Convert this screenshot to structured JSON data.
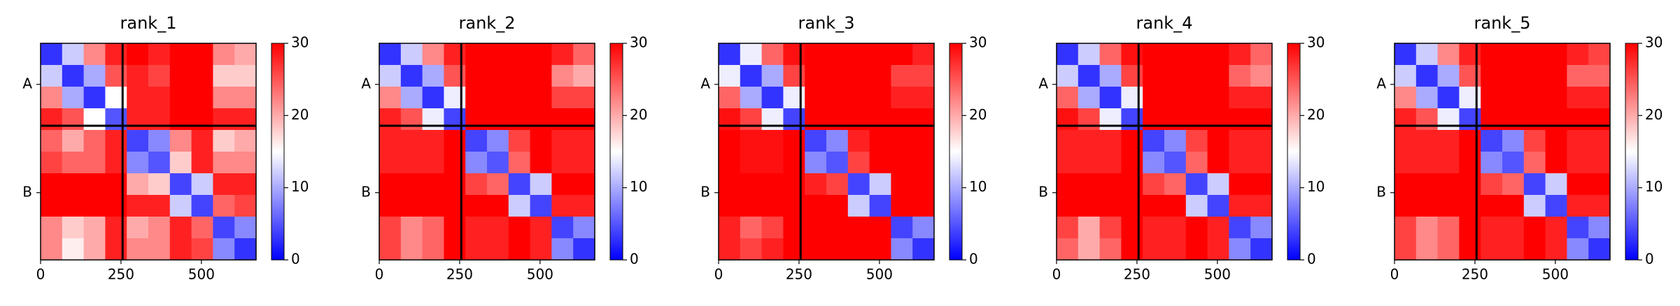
{
  "chart_data": [
    {
      "type": "heatmap",
      "title": "rank_1",
      "bins": [
        0,
        67,
        134,
        201,
        268,
        335,
        402,
        469,
        536,
        603,
        670
      ],
      "xlim": [
        0,
        670
      ],
      "ylim": [
        670,
        0
      ],
      "xticks": [
        0,
        250,
        500
      ],
      "yticks": [
        {
          "value": 127,
          "label": "A"
        },
        {
          "value": 462,
          "label": "B"
        }
      ],
      "chain_breaks": [
        255
      ],
      "clim": [
        0,
        30
      ],
      "cticks": [
        0,
        10,
        20,
        30
      ],
      "cmap": "bwr",
      "matrix": [
        [
          3,
          12,
          22,
          28,
          30,
          28,
          30,
          30,
          22,
          20
        ],
        [
          12,
          3,
          10,
          25,
          28,
          26,
          30,
          30,
          18,
          18
        ],
        [
          22,
          10,
          3,
          15,
          28,
          28,
          30,
          30,
          22,
          22
        ],
        [
          28,
          25,
          15,
          5,
          28,
          28,
          30,
          30,
          28,
          28
        ],
        [
          24,
          20,
          24,
          28,
          4,
          8,
          22,
          28,
          18,
          20
        ],
        [
          26,
          24,
          24,
          28,
          8,
          5,
          18,
          28,
          22,
          22
        ],
        [
          30,
          30,
          30,
          30,
          20,
          18,
          4,
          12,
          28,
          28
        ],
        [
          30,
          30,
          30,
          30,
          28,
          28,
          12,
          4,
          24,
          26
        ],
        [
          22,
          18,
          20,
          28,
          20,
          22,
          28,
          24,
          4,
          8
        ],
        [
          22,
          16,
          20,
          28,
          22,
          22,
          28,
          26,
          8,
          3
        ]
      ]
    },
    {
      "type": "heatmap",
      "title": "rank_2",
      "bins": [
        0,
        67,
        134,
        201,
        268,
        335,
        402,
        469,
        536,
        603,
        670
      ],
      "xlim": [
        0,
        670
      ],
      "ylim": [
        670,
        0
      ],
      "xticks": [
        0,
        250,
        500
      ],
      "yticks": [
        {
          "value": 127,
          "label": "A"
        },
        {
          "value": 462,
          "label": "B"
        }
      ],
      "chain_breaks": [
        255
      ],
      "clim": [
        0,
        30
      ],
      "cticks": [
        0,
        10,
        20,
        30
      ],
      "cmap": "bwr",
      "matrix": [
        [
          3,
          12,
          22,
          28,
          30,
          30,
          30,
          30,
          28,
          24
        ],
        [
          12,
          3,
          10,
          25,
          30,
          30,
          30,
          30,
          22,
          20
        ],
        [
          22,
          10,
          3,
          14,
          30,
          30,
          30,
          30,
          26,
          26
        ],
        [
          28,
          25,
          14,
          4,
          30,
          30,
          30,
          30,
          30,
          30
        ],
        [
          28,
          28,
          28,
          30,
          4,
          8,
          26,
          30,
          28,
          28
        ],
        [
          28,
          28,
          28,
          30,
          8,
          5,
          24,
          30,
          28,
          28
        ],
        [
          30,
          30,
          30,
          30,
          26,
          24,
          4,
          12,
          30,
          30
        ],
        [
          30,
          30,
          30,
          30,
          30,
          30,
          12,
          4,
          28,
          28
        ],
        [
          26,
          22,
          24,
          30,
          28,
          28,
          30,
          28,
          4,
          8
        ],
        [
          26,
          22,
          24,
          30,
          28,
          28,
          30,
          28,
          8,
          3
        ]
      ]
    },
    {
      "type": "heatmap",
      "title": "rank_3",
      "bins": [
        0,
        67,
        134,
        201,
        268,
        335,
        402,
        469,
        536,
        603,
        670
      ],
      "xlim": [
        0,
        670
      ],
      "ylim": [
        670,
        0
      ],
      "xticks": [
        0,
        250,
        500
      ],
      "yticks": [
        {
          "value": 127,
          "label": "A"
        },
        {
          "value": 462,
          "label": "B"
        }
      ],
      "chain_breaks": [
        255
      ],
      "clim": [
        0,
        30
      ],
      "cticks": [
        0,
        10,
        20,
        30
      ],
      "cmap": "bwr",
      "matrix": [
        [
          3,
          14,
          24,
          29,
          30,
          30,
          30,
          30,
          30,
          28
        ],
        [
          14,
          3,
          10,
          26,
          30,
          30,
          30,
          30,
          26,
          26
        ],
        [
          24,
          10,
          3,
          14,
          30,
          30,
          30,
          30,
          28,
          28
        ],
        [
          29,
          26,
          14,
          4,
          30,
          30,
          30,
          30,
          30,
          30
        ],
        [
          30,
          29,
          29,
          30,
          4,
          8,
          28,
          30,
          30,
          30
        ],
        [
          30,
          29,
          29,
          30,
          8,
          5,
          26,
          30,
          30,
          30
        ],
        [
          30,
          30,
          30,
          30,
          28,
          26,
          4,
          12,
          30,
          30
        ],
        [
          30,
          30,
          30,
          30,
          30,
          30,
          12,
          4,
          30,
          30
        ],
        [
          28,
          24,
          26,
          30,
          30,
          30,
          30,
          30,
          4,
          8
        ],
        [
          28,
          26,
          28,
          30,
          30,
          30,
          30,
          30,
          8,
          3
        ]
      ]
    },
    {
      "type": "heatmap",
      "title": "rank_4",
      "bins": [
        0,
        67,
        134,
        201,
        268,
        335,
        402,
        469,
        536,
        603,
        670
      ],
      "xlim": [
        0,
        670
      ],
      "ylim": [
        670,
        0
      ],
      "xticks": [
        0,
        250,
        500
      ],
      "yticks": [
        {
          "value": 127,
          "label": "A"
        },
        {
          "value": 462,
          "label": "B"
        }
      ],
      "chain_breaks": [
        255
      ],
      "clim": [
        0,
        30
      ],
      "cticks": [
        0,
        10,
        20,
        30
      ],
      "cmap": "bwr",
      "matrix": [
        [
          3,
          12,
          24,
          29,
          30,
          30,
          30,
          30,
          28,
          24
        ],
        [
          12,
          3,
          10,
          26,
          30,
          30,
          30,
          30,
          24,
          22
        ],
        [
          24,
          10,
          3,
          14,
          30,
          30,
          30,
          30,
          28,
          28
        ],
        [
          29,
          26,
          14,
          4,
          30,
          30,
          30,
          30,
          30,
          30
        ],
        [
          28,
          28,
          28,
          30,
          4,
          8,
          26,
          30,
          28,
          28
        ],
        [
          28,
          28,
          28,
          30,
          8,
          5,
          24,
          30,
          28,
          28
        ],
        [
          30,
          30,
          30,
          30,
          26,
          24,
          4,
          12,
          30,
          30
        ],
        [
          30,
          30,
          30,
          30,
          30,
          30,
          12,
          4,
          28,
          28
        ],
        [
          26,
          20,
          26,
          30,
          28,
          28,
          30,
          28,
          4,
          8
        ],
        [
          24,
          20,
          24,
          30,
          28,
          28,
          30,
          28,
          8,
          3
        ]
      ]
    },
    {
      "type": "heatmap",
      "title": "rank_5",
      "bins": [
        0,
        67,
        134,
        201,
        268,
        335,
        402,
        469,
        536,
        603,
        670
      ],
      "xlim": [
        0,
        670
      ],
      "ylim": [
        670,
        0
      ],
      "xticks": [
        0,
        250,
        500
      ],
      "yticks": [
        {
          "value": 127,
          "label": "A"
        },
        {
          "value": 462,
          "label": "B"
        }
      ],
      "chain_breaks": [
        255
      ],
      "clim": [
        0,
        30
      ],
      "cticks": [
        0,
        10,
        20,
        30
      ],
      "cmap": "bwr",
      "matrix": [
        [
          3,
          12,
          22,
          28,
          30,
          30,
          30,
          30,
          28,
          26
        ],
        [
          12,
          3,
          10,
          25,
          30,
          30,
          30,
          30,
          24,
          24
        ],
        [
          22,
          10,
          3,
          14,
          30,
          30,
          30,
          30,
          28,
          28
        ],
        [
          28,
          25,
          14,
          4,
          30,
          30,
          30,
          30,
          30,
          30
        ],
        [
          28,
          28,
          28,
          30,
          4,
          8,
          26,
          30,
          28,
          28
        ],
        [
          28,
          28,
          28,
          30,
          8,
          5,
          24,
          30,
          28,
          28
        ],
        [
          30,
          30,
          30,
          30,
          26,
          24,
          4,
          12,
          30,
          30
        ],
        [
          30,
          30,
          30,
          30,
          30,
          30,
          12,
          4,
          28,
          28
        ],
        [
          26,
          22,
          24,
          30,
          28,
          28,
          30,
          28,
          4,
          8
        ],
        [
          26,
          22,
          24,
          30,
          28,
          28,
          30,
          28,
          8,
          3
        ]
      ]
    }
  ]
}
